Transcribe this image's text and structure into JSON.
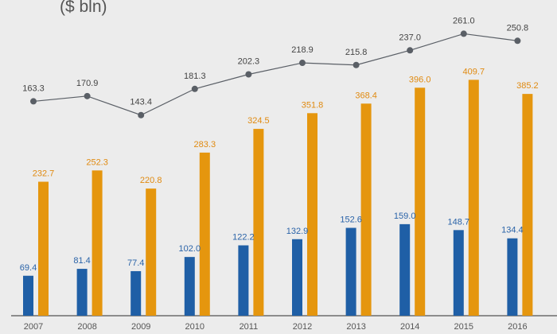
{
  "chart_data": {
    "type": "bar",
    "title": "($ bln)",
    "categories": [
      "2007",
      "2008",
      "2009",
      "2010",
      "2011",
      "2012",
      "2013",
      "2014",
      "2015",
      "2016"
    ],
    "series": [
      {
        "name": "series-1",
        "kind": "bar",
        "color": "#1f5fa6",
        "label_color": "#2a63a8",
        "values": [
          69.4,
          81.4,
          77.4,
          102.0,
          122.2,
          132.9,
          152.6,
          159.0,
          148.7,
          134.4
        ]
      },
      {
        "name": "series-2",
        "kind": "bar",
        "color": "#e5960e",
        "label_color": "#e08a10",
        "values": [
          232.7,
          252.3,
          220.8,
          283.3,
          324.5,
          351.8,
          368.4,
          396.0,
          409.7,
          385.2
        ]
      },
      {
        "name": "series-3",
        "kind": "line",
        "color": "#5a5f66",
        "label_color": "#444444",
        "values": [
          163.3,
          170.9,
          143.4,
          181.3,
          202.3,
          218.9,
          215.8,
          237.0,
          261.0,
          250.8
        ]
      }
    ],
    "labels": {
      "series-1": [
        "69.4",
        "81.4",
        "77.4",
        "102.0",
        "122.2",
        "132.9",
        "152.6",
        "159.0",
        "148.7",
        "134.4"
      ],
      "series-2": [
        "232.7",
        "252.3",
        "220.8",
        "283.3",
        "324.5",
        "351.8",
        "368.4",
        "396.0",
        "409.7",
        "385.2"
      ],
      "series-3": [
        "163.3",
        "170.9",
        "143.4",
        "181.3",
        "202.3",
        "218.9",
        "215.8",
        "237.0",
        "261.0",
        "250.8"
      ]
    },
    "xlabel": "",
    "ylabel": "",
    "legend": "none",
    "grid": false
  }
}
